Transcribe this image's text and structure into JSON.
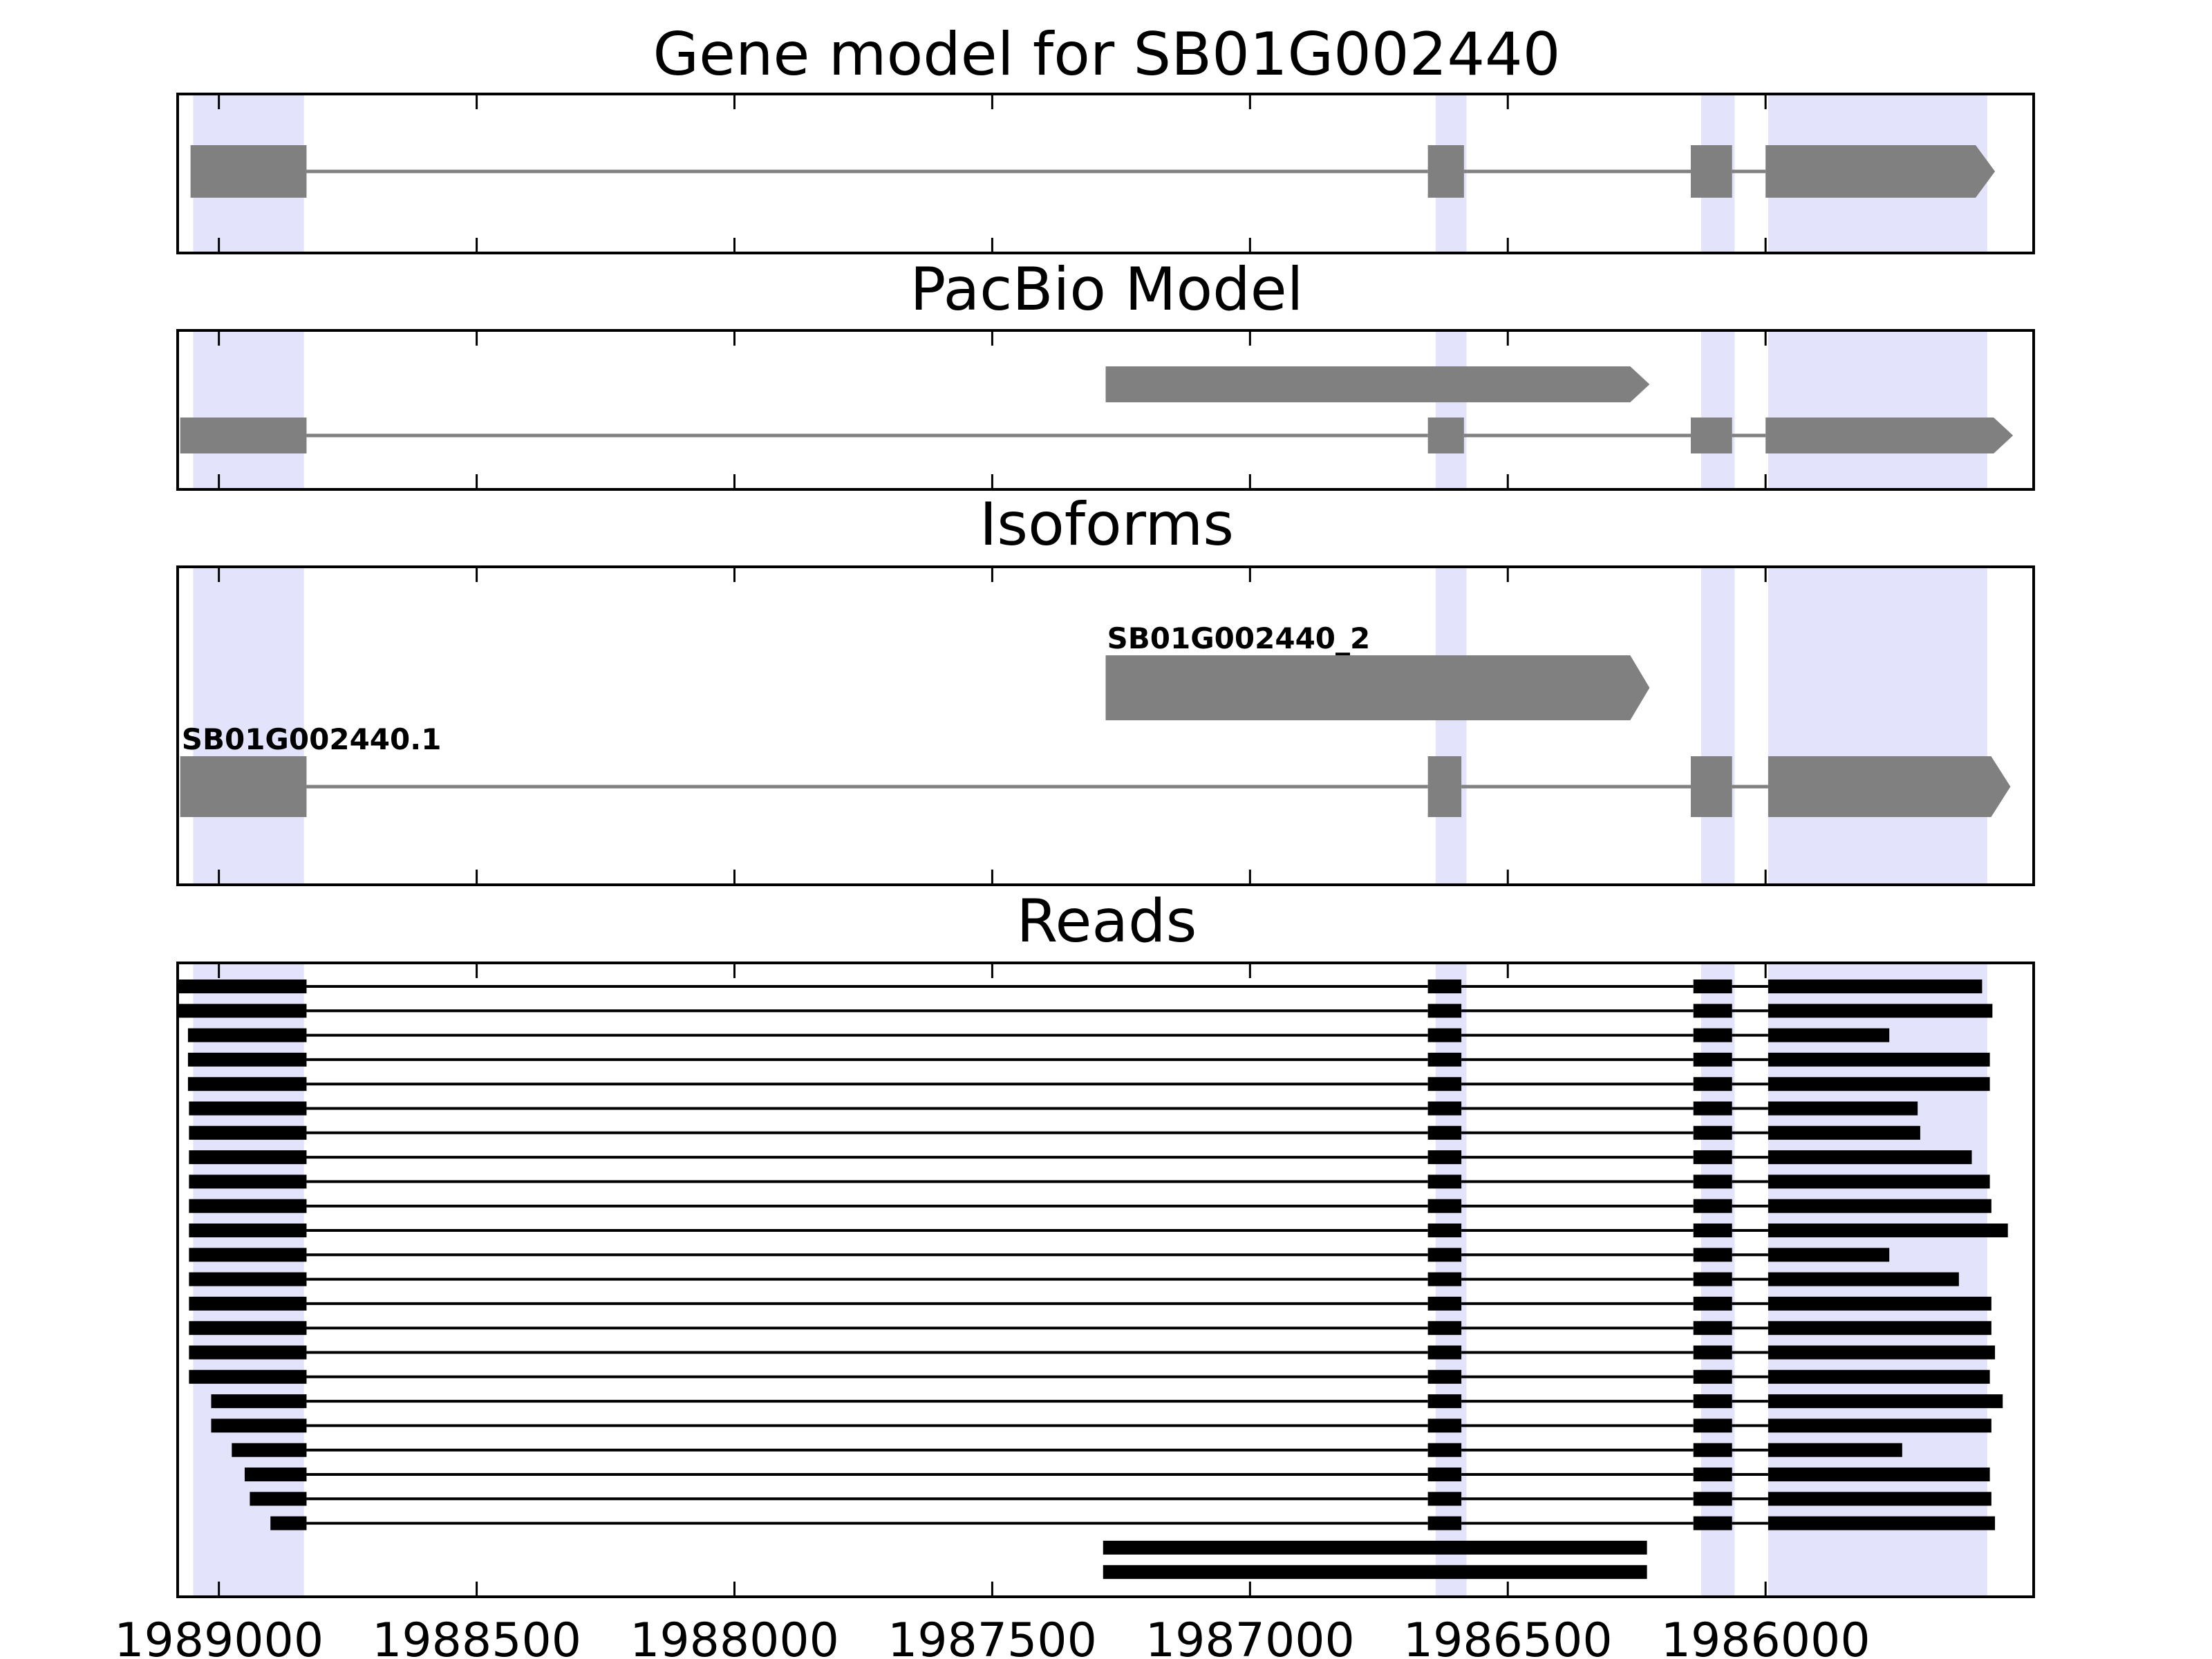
{
  "chart_data": {
    "type": "gene-structure-tracks",
    "x_axis": {
      "range": [
        1989080,
        1985480
      ],
      "reversed": true,
      "ticks": [
        1989000,
        1988500,
        1988000,
        1987500,
        1987000,
        1986500,
        1986000
      ],
      "tick_labels": [
        "1989000",
        "1988500",
        "1988000",
        "1987500",
        "1987000",
        "1986500",
        "1986000"
      ]
    },
    "colors": {
      "exon_fill": "#808080",
      "intron_line": "#808080",
      "exon_highlight": "#e3e3fb",
      "read_color": "#000000"
    },
    "highlight_regions": [
      [
        1989050,
        1988835
      ],
      [
        1986640,
        1986580
      ],
      [
        1986125,
        1986060
      ],
      [
        1985995,
        1985570
      ]
    ],
    "panels": [
      {
        "title": "Gene model for SB01G002440",
        "tracks": [
          {
            "label": "",
            "exons": [
              [
                1989055,
                1988830
              ],
              [
                1986655,
                1986585
              ],
              [
                1986145,
                1986065
              ],
              [
                1986000,
                1985555
              ]
            ]
          }
        ]
      },
      {
        "title": "PacBio Model",
        "tracks": [
          {
            "label": "",
            "exons": [
              [
                1987280,
                1986225
              ]
            ]
          },
          {
            "label": "",
            "exons": [
              [
                1989075,
                1988830
              ],
              [
                1986655,
                1986585
              ],
              [
                1986145,
                1986065
              ],
              [
                1986000,
                1985520
              ]
            ]
          }
        ]
      },
      {
        "title": "Isoforms",
        "tracks": [
          {
            "label": "SB01G002440_2",
            "exons": [
              [
                1987280,
                1986225
              ]
            ]
          },
          {
            "label": "SB01G002440.1",
            "exons": [
              [
                1989075,
                1988830
              ],
              [
                1986655,
                1986590
              ],
              [
                1986145,
                1986065
              ],
              [
                1985995,
                1985525
              ]
            ]
          }
        ]
      },
      {
        "title": "Reads",
        "reads": [
          [
            [
              1989080,
              1988830
            ],
            [
              1986655,
              1986590
            ],
            [
              1986140,
              1986065
            ],
            [
              1985995,
              1985580
            ]
          ],
          [
            [
              1989080,
              1988830
            ],
            [
              1986655,
              1986590
            ],
            [
              1986140,
              1986065
            ],
            [
              1985995,
              1985560
            ]
          ],
          [
            [
              1989060,
              1988830
            ],
            [
              1986655,
              1986590
            ],
            [
              1986140,
              1986065
            ],
            [
              1985995,
              1985760
            ]
          ],
          [
            [
              1989060,
              1988830
            ],
            [
              1986655,
              1986590
            ],
            [
              1986140,
              1986065
            ],
            [
              1985995,
              1985565
            ]
          ],
          [
            [
              1989060,
              1988830
            ],
            [
              1986655,
              1986590
            ],
            [
              1986140,
              1986065
            ],
            [
              1985995,
              1985565
            ]
          ],
          [
            [
              1989058,
              1988830
            ],
            [
              1986655,
              1986590
            ],
            [
              1986140,
              1986065
            ],
            [
              1985995,
              1985705
            ]
          ],
          [
            [
              1989058,
              1988830
            ],
            [
              1986655,
              1986590
            ],
            [
              1986140,
              1986065
            ],
            [
              1985995,
              1985700
            ]
          ],
          [
            [
              1989058,
              1988830
            ],
            [
              1986655,
              1986590
            ],
            [
              1986140,
              1986065
            ],
            [
              1985995,
              1985600
            ]
          ],
          [
            [
              1989058,
              1988830
            ],
            [
              1986655,
              1986590
            ],
            [
              1986140,
              1986065
            ],
            [
              1985995,
              1985565
            ]
          ],
          [
            [
              1989058,
              1988830
            ],
            [
              1986655,
              1986590
            ],
            [
              1986140,
              1986065
            ],
            [
              1985995,
              1985562
            ]
          ],
          [
            [
              1989058,
              1988830
            ],
            [
              1986655,
              1986590
            ],
            [
              1986140,
              1986065
            ],
            [
              1985995,
              1985530
            ]
          ],
          [
            [
              1989058,
              1988830
            ],
            [
              1986655,
              1986590
            ],
            [
              1986140,
              1986065
            ],
            [
              1985995,
              1985760
            ]
          ],
          [
            [
              1989058,
              1988830
            ],
            [
              1986655,
              1986590
            ],
            [
              1986140,
              1986065
            ],
            [
              1985995,
              1985625
            ]
          ],
          [
            [
              1989058,
              1988830
            ],
            [
              1986655,
              1986590
            ],
            [
              1986140,
              1986065
            ],
            [
              1985995,
              1985562
            ]
          ],
          [
            [
              1989058,
              1988830
            ],
            [
              1986655,
              1986590
            ],
            [
              1986140,
              1986065
            ],
            [
              1985995,
              1985562
            ]
          ],
          [
            [
              1989058,
              1988830
            ],
            [
              1986655,
              1986590
            ],
            [
              1986140,
              1986065
            ],
            [
              1985995,
              1985555
            ]
          ],
          [
            [
              1989058,
              1988830
            ],
            [
              1986655,
              1986590
            ],
            [
              1986140,
              1986065
            ],
            [
              1985995,
              1985565
            ]
          ],
          [
            [
              1989015,
              1988830
            ],
            [
              1986655,
              1986590
            ],
            [
              1986140,
              1986065
            ],
            [
              1985995,
              1985540
            ]
          ],
          [
            [
              1989015,
              1988830
            ],
            [
              1986655,
              1986590
            ],
            [
              1986140,
              1986065
            ],
            [
              1985995,
              1985562
            ]
          ],
          [
            [
              1988975,
              1988830
            ],
            [
              1986655,
              1986590
            ],
            [
              1986140,
              1986065
            ],
            [
              1985995,
              1985735
            ]
          ],
          [
            [
              1988950,
              1988830
            ],
            [
              1986655,
              1986590
            ],
            [
              1986140,
              1986065
            ],
            [
              1985995,
              1985565
            ]
          ],
          [
            [
              1988940,
              1988830
            ],
            [
              1986655,
              1986590
            ],
            [
              1986140,
              1986065
            ],
            [
              1985995,
              1985562
            ]
          ],
          [
            [
              1988900,
              1988830
            ],
            [
              1986655,
              1986590
            ],
            [
              1986140,
              1986065
            ],
            [
              1985995,
              1985555
            ]
          ],
          [
            [
              1987285,
              1986230
            ]
          ],
          [
            [
              1987285,
              1986230
            ]
          ]
        ]
      }
    ]
  }
}
